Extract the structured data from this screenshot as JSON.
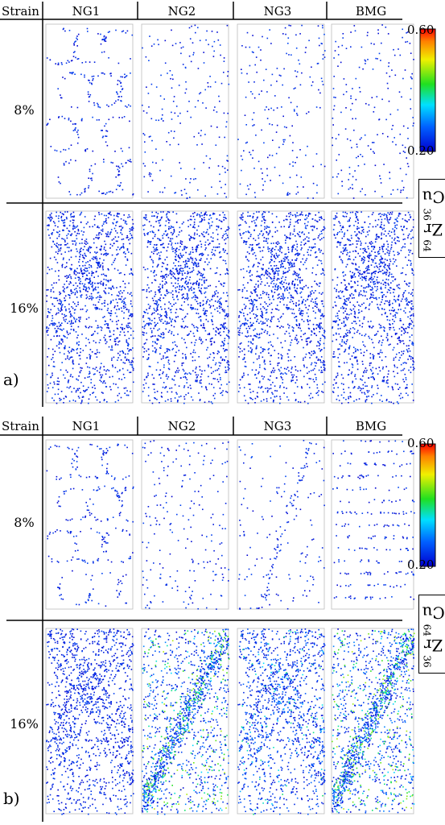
{
  "figure": {
    "strain_header": "Strain",
    "sample_headers": [
      "NG1",
      "NG2",
      "NG3",
      "BMG"
    ],
    "colorbar": {
      "max_label": "0.60",
      "min_label": "0.20",
      "colormap": "jet"
    },
    "panels": [
      {
        "label": "a)",
        "composition": {
          "cu": "Cu",
          "cu_sub": "36",
          "zr": "Zr",
          "zr_sub": "64"
        },
        "rows": [
          {
            "strain": "8%",
            "maps": [
              {
                "sample": "NG1",
                "pattern": "grain-boundary network",
                "intensity": "low"
              },
              {
                "sample": "NG2",
                "pattern": "sparse",
                "intensity": "low"
              },
              {
                "sample": "NG3",
                "pattern": "sparse",
                "intensity": "low"
              },
              {
                "sample": "BMG",
                "pattern": "sparse",
                "intensity": "low"
              }
            ]
          },
          {
            "strain": "16%",
            "maps": [
              {
                "sample": "NG1",
                "pattern": "dense crossing bands",
                "intensity": "low"
              },
              {
                "sample": "NG2",
                "pattern": "dense crossing bands",
                "intensity": "low"
              },
              {
                "sample": "NG3",
                "pattern": "dense crossing bands",
                "intensity": "low"
              },
              {
                "sample": "BMG",
                "pattern": "dense crossing bands",
                "intensity": "low"
              }
            ]
          }
        ]
      },
      {
        "label": "b)",
        "composition": {
          "cu": "Cu",
          "cu_sub": "64",
          "zr": "Zr",
          "zr_sub": "36"
        },
        "rows": [
          {
            "strain": "8%",
            "maps": [
              {
                "sample": "NG1",
                "pattern": "grain-boundary network",
                "intensity": "low"
              },
              {
                "sample": "NG2",
                "pattern": "sparse",
                "intensity": "low"
              },
              {
                "sample": "NG3",
                "pattern": "sparse with diagonal streak",
                "intensity": "low"
              },
              {
                "sample": "BMG",
                "pattern": "horizontal layers",
                "intensity": "low"
              }
            ]
          },
          {
            "strain": "16%",
            "maps": [
              {
                "sample": "NG1",
                "pattern": "dense crossing bands",
                "intensity": "low"
              },
              {
                "sample": "NG2",
                "pattern": "localized shear band",
                "intensity": "high"
              },
              {
                "sample": "NG3",
                "pattern": "dense crossing bands",
                "intensity": "medium"
              },
              {
                "sample": "BMG",
                "pattern": "localized shear band",
                "intensity": "high"
              }
            ]
          }
        ]
      }
    ]
  }
}
